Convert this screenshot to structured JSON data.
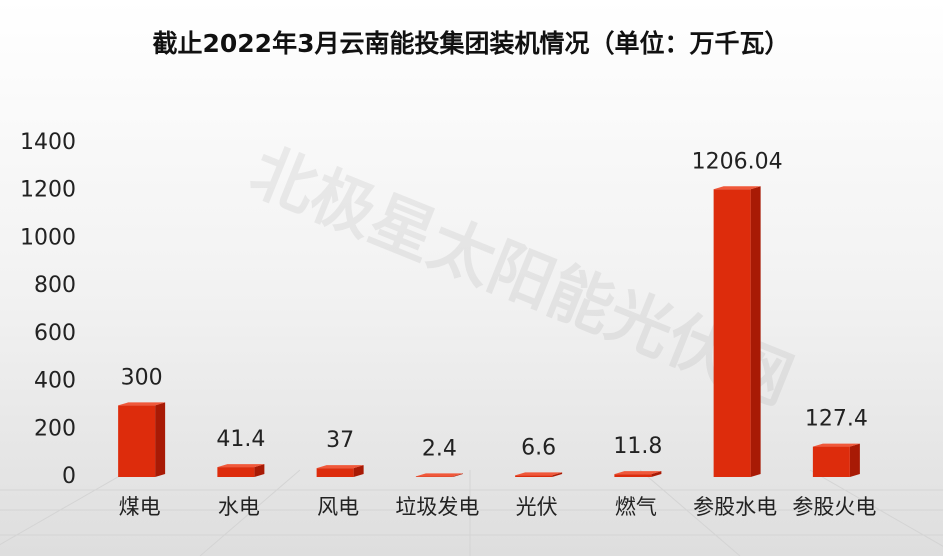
{
  "chart_data": {
    "type": "bar3d",
    "title": "截止2022年3月云南能投集团装机情况（单位：万千瓦）",
    "watermark": "北极星太阳能光伏网",
    "categories": [
      "煤电",
      "水电",
      "风电",
      "垃圾发电",
      "光伏",
      "燃气",
      "参股水电",
      "参股火电"
    ],
    "values": [
      300,
      41.4,
      37,
      2.4,
      6.6,
      11.8,
      1206.04,
      127.4
    ],
    "color": "#dd2c0c",
    "ylim": [
      0,
      1400
    ],
    "yticks": [
      0,
      200,
      400,
      600,
      800,
      1000,
      1200,
      1400
    ],
    "grid": false,
    "data_labels": true
  }
}
